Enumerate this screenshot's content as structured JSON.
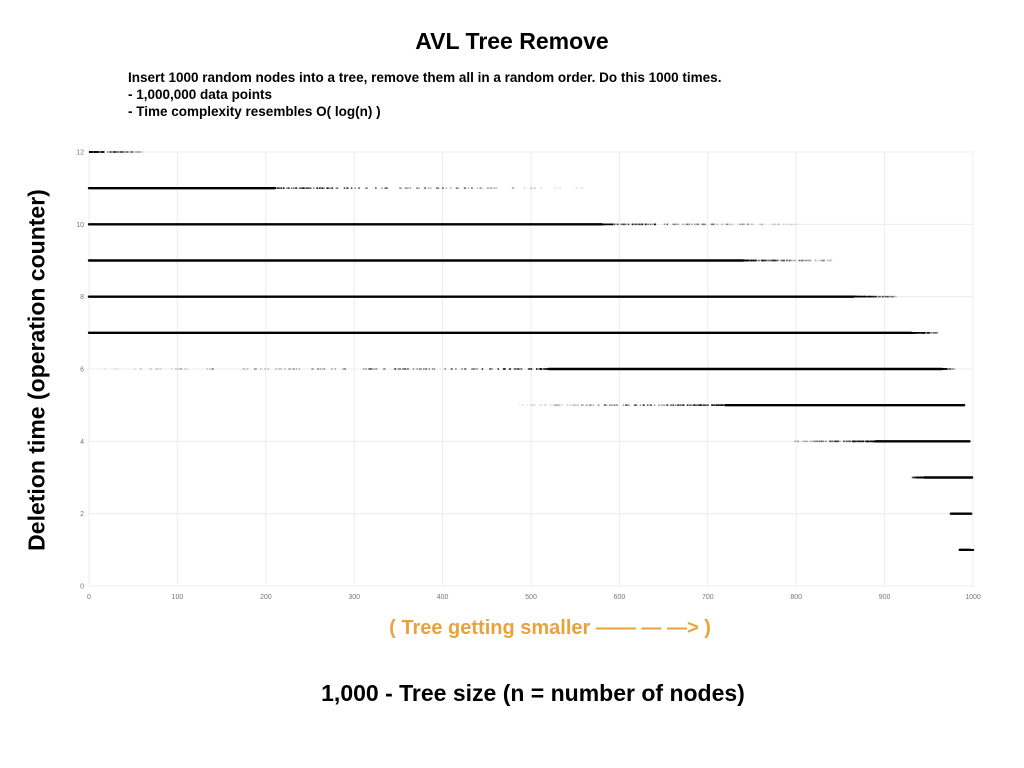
{
  "page": {
    "title": "AVL Tree Remove",
    "notes": [
      "Insert 1000 random nodes into a tree, remove them all in a random order. Do this 1000 times.",
      "-  1,000,000 data points",
      "-  Time complexity resembles O( log(n) )"
    ],
    "annotation": "( Tree getting smaller ——  —  —> )"
  },
  "chart_data": {
    "type": "scatter",
    "title": "AVL Tree Remove",
    "xlabel": "1,000 - Tree size (n = number of nodes)",
    "ylabel": "Deletion time (operation counter)",
    "xlim": [
      0,
      1000
    ],
    "ylim": [
      0,
      12
    ],
    "xticks": [
      "0",
      "100",
      "200",
      "300",
      "400",
      "500",
      "600",
      "700",
      "800",
      "900",
      "1000"
    ],
    "yticks": [
      "0",
      "2",
      "4",
      "6",
      "8",
      "10",
      "12"
    ],
    "grid": true,
    "point_color": "#000000",
    "bands": [
      {
        "y": 1,
        "x_start": 985,
        "x_solid_end": 997,
        "x_sparse_end": 1000,
        "sparse_side": "right"
      },
      {
        "y": 2,
        "x_start": 975,
        "x_solid_end": 998,
        "x_sparse_end": 975,
        "sparse_side": "left"
      },
      {
        "y": 3,
        "x_start": 945,
        "x_solid_end": 999,
        "x_sparse_end": 930,
        "sparse_side": "left"
      },
      {
        "y": 4,
        "x_start": 890,
        "x_solid_end": 996,
        "x_sparse_end": 795,
        "sparse_side": "left"
      },
      {
        "y": 5,
        "x_start": 720,
        "x_solid_end": 990,
        "x_sparse_end": 485,
        "sparse_side": "left"
      },
      {
        "y": 6,
        "x_start": 520,
        "x_solid_end": 965,
        "x_sparse_end": 0,
        "sparse_side": "left",
        "sparse_end_right": 980
      },
      {
        "y": 7,
        "x_start": 0,
        "x_solid_end": 930,
        "x_sparse_end": 960,
        "sparse_side": "right"
      },
      {
        "y": 8,
        "x_start": 0,
        "x_solid_end": 865,
        "x_sparse_end": 915,
        "sparse_side": "right"
      },
      {
        "y": 9,
        "x_start": 0,
        "x_solid_end": 740,
        "x_sparse_end": 845,
        "sparse_side": "right"
      },
      {
        "y": 10,
        "x_start": 0,
        "x_solid_end": 580,
        "x_sparse_end": 800,
        "sparse_side": "right"
      },
      {
        "y": 11,
        "x_start": 0,
        "x_solid_end": 210,
        "x_sparse_end": 560,
        "sparse_side": "right"
      },
      {
        "y": 12,
        "x_start": 0,
        "x_solid_end": 0,
        "x_sparse_end": 60,
        "sparse_side": "right"
      }
    ]
  }
}
